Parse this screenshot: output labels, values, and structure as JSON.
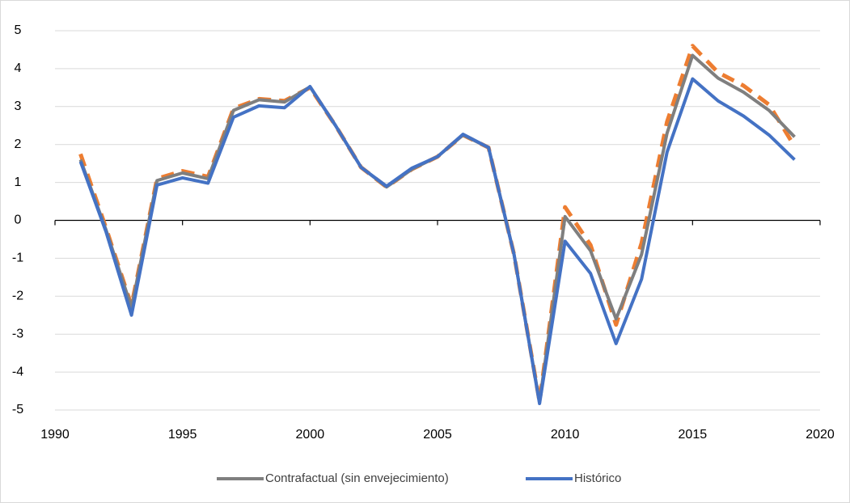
{
  "chart_data": {
    "type": "line",
    "x": [
      1991,
      1992,
      1993,
      1994,
      1995,
      1996,
      1997,
      1998,
      1999,
      2000,
      2001,
      2002,
      2003,
      2004,
      2005,
      2006,
      2007,
      2008,
      2009,
      2010,
      2011,
      2012,
      2013,
      2014,
      2015,
      2016,
      2017,
      2018,
      2019
    ],
    "series": [
      {
        "color": "#ed7d31",
        "dashed": true,
        "values": [
          1.75,
          -0.2,
          -2.25,
          1.1,
          1.3,
          1.15,
          2.95,
          3.2,
          3.15,
          3.5,
          2.5,
          1.4,
          0.88,
          1.35,
          1.68,
          2.25,
          1.92,
          -0.9,
          -4.78,
          0.35,
          -0.65,
          -2.75,
          -0.6,
          2.6,
          4.6,
          3.9,
          3.55,
          3.05,
          1.95
        ]
      },
      {
        "name": "Contrafactual (sin envejecimiento)",
        "color": "#7f7f7f",
        "dashed": false,
        "values": [
          1.6,
          -0.25,
          -2.3,
          1.05,
          1.25,
          1.1,
          2.9,
          3.18,
          3.12,
          3.52,
          2.5,
          1.4,
          0.88,
          1.35,
          1.68,
          2.25,
          1.92,
          -0.9,
          -4.8,
          0.1,
          -0.8,
          -2.6,
          -0.9,
          2.3,
          4.35,
          3.75,
          3.38,
          2.9,
          2.2
        ]
      },
      {
        "name": "Histórico",
        "color": "#4472c4",
        "dashed": false,
        "values": [
          1.55,
          -0.3,
          -2.5,
          0.93,
          1.12,
          0.98,
          2.72,
          3.02,
          2.97,
          3.53,
          2.5,
          1.4,
          0.9,
          1.38,
          1.68,
          2.27,
          1.92,
          -0.9,
          -4.83,
          -0.55,
          -1.4,
          -3.25,
          -1.55,
          1.8,
          3.73,
          3.15,
          2.75,
          2.25,
          1.6
        ]
      }
    ],
    "xlim": [
      1990,
      2020
    ],
    "xticks": [
      1990,
      1995,
      2000,
      2005,
      2010,
      2015,
      2020
    ],
    "ylim": [
      -5,
      5
    ],
    "yticks": [
      -5,
      -4,
      -3,
      -2,
      -1,
      0,
      1,
      2,
      3,
      4,
      5
    ],
    "grid": true,
    "legend": "bottom"
  }
}
